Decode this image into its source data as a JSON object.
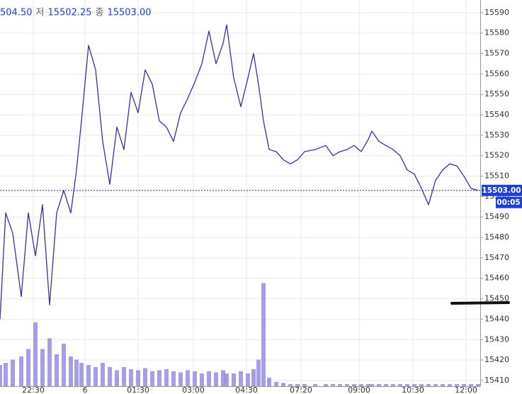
{
  "chart_data": {
    "type": "line",
    "header": [
      "504.50",
      "저",
      "15502.25",
      "종",
      "15503.00"
    ],
    "x": [
      0,
      8,
      18,
      30,
      40,
      50,
      60,
      70,
      80,
      90,
      100,
      108,
      115,
      125,
      135,
      145,
      155,
      165,
      175,
      185,
      195,
      205,
      215,
      225,
      235,
      245,
      255,
      265,
      275,
      285,
      295,
      305,
      315,
      320,
      330,
      340,
      350,
      358,
      365,
      372,
      380,
      390,
      400,
      410,
      420,
      430,
      445,
      460,
      470,
      480,
      490,
      500,
      510,
      520,
      525,
      535,
      545,
      555,
      565,
      575,
      585,
      595,
      605,
      615,
      625,
      635,
      645,
      655,
      665,
      675
    ],
    "series": [
      {
        "color": "#3b2f9e",
        "values": [
          15440,
          15492,
          15482,
          15451,
          15492,
          15471,
          15496,
          15447,
          15492,
          15503,
          15492,
          15513,
          15537,
          15574,
          15562,
          15527,
          15506,
          15534,
          15523,
          15551,
          15541,
          15562,
          15555,
          15537,
          15534,
          15527,
          15541,
          15548,
          15556,
          15565,
          15581,
          15565,
          15575,
          15584,
          15558,
          15544,
          15558,
          15570,
          15555,
          15537,
          15523,
          15522,
          15518,
          15516,
          15518,
          15522,
          15523,
          15525,
          15520,
          15522,
          15523,
          15525,
          15522,
          15528,
          15532,
          15527,
          15525,
          15523,
          15520,
          15513,
          15511,
          15504,
          15496,
          15508,
          15513,
          15516,
          15515,
          15510,
          15504,
          15503
        ]
      },
      {
        "type": "bar",
        "axis": "y2",
        "color": "#8a7ee0",
        "values": [
          20,
          22,
          25,
          28,
          35,
          60,
          35,
          45,
          30,
          40,
          28,
          25,
          22,
          20,
          18,
          22,
          18,
          15,
          18,
          16,
          15,
          17,
          14,
          15,
          16,
          14,
          13,
          15,
          14,
          12,
          14,
          13,
          15,
          12,
          12,
          14,
          12,
          16,
          25,
          97,
          8,
          4,
          3,
          2,
          2,
          2,
          2,
          2,
          2,
          2,
          2,
          2,
          2,
          2,
          2,
          2,
          2,
          2,
          2,
          2,
          2,
          2,
          2,
          2,
          2,
          2,
          2,
          2,
          2,
          2
        ]
      }
    ],
    "xlim": [
      0,
      678
    ],
    "xticks": [
      {
        "value": 47,
        "label": "22:30"
      },
      {
        "value": 120,
        "label": "6"
      },
      {
        "value": 195,
        "label": "01:30"
      },
      {
        "value": 273,
        "label": "03:00"
      },
      {
        "value": 348,
        "label": "04:30"
      },
      {
        "value": 425,
        "label": "07:20"
      },
      {
        "value": 507,
        "label": "09:00"
      },
      {
        "value": 583,
        "label": "10:30"
      },
      {
        "value": 658,
        "label": "12:00"
      }
    ],
    "ylim": [
      15407.2,
      15596.2
    ],
    "yticks": [
      15410,
      15420,
      15430,
      15440,
      15450,
      15460,
      15470,
      15480,
      15490,
      15500,
      15510,
      15520,
      15530,
      15540,
      15550,
      15560,
      15570,
      15580,
      15590
    ],
    "y2lim": [
      0,
      100
    ],
    "grid": true,
    "last_price": {
      "value": 15503,
      "label": "15503.00"
    },
    "countdown": "00:05"
  }
}
